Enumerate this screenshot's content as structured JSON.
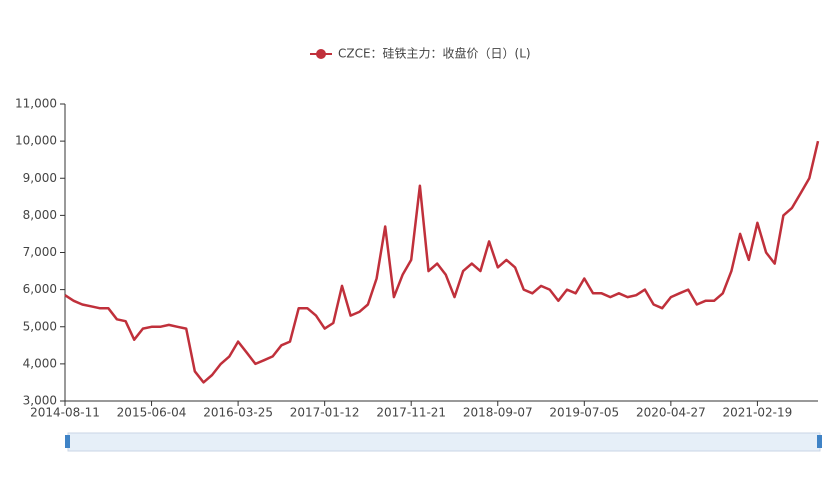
{
  "chart_data": {
    "type": "line",
    "categories": [
      "2014-08-11",
      null,
      null,
      null,
      null,
      null,
      null,
      null,
      null,
      null,
      "2015-06-04",
      null,
      null,
      null,
      null,
      null,
      null,
      null,
      null,
      null,
      "2016-03-25",
      null,
      null,
      null,
      null,
      null,
      null,
      null,
      null,
      null,
      "2017-01-12",
      null,
      null,
      null,
      null,
      null,
      null,
      null,
      null,
      null,
      "2017-11-21",
      null,
      null,
      null,
      null,
      null,
      null,
      null,
      null,
      null,
      "2018-09-07",
      null,
      null,
      null,
      null,
      null,
      null,
      null,
      null,
      null,
      "2019-07-05",
      null,
      null,
      null,
      null,
      null,
      null,
      null,
      null,
      null,
      "2020-04-27",
      null,
      null,
      null,
      null,
      null,
      null,
      null,
      null,
      null,
      "2021-02-19",
      null,
      null,
      null,
      null,
      null,
      null,
      null
    ],
    "series": [
      {
        "name": "CZCE：硅铁主力：收盘价（日）(L)",
        "color": "#c0303b",
        "values": [
          5850,
          5700,
          5600,
          5550,
          5500,
          5500,
          5200,
          5150,
          4650,
          4950,
          5000,
          5000,
          5050,
          5000,
          4950,
          3800,
          3500,
          3700,
          4000,
          4200,
          4600,
          4300,
          4000,
          4100,
          4200,
          4500,
          4600,
          5500,
          5500,
          5300,
          4950,
          5100,
          6100,
          5300,
          5400,
          5600,
          6300,
          7700,
          5800,
          6400,
          6800,
          8800,
          6500,
          6700,
          6400,
          5800,
          6500,
          6700,
          6500,
          7300,
          6600,
          6800,
          6600,
          6000,
          5900,
          6100,
          6000,
          5700,
          6000,
          5900,
          6300,
          5900,
          5900,
          5800,
          5900,
          5800,
          5850,
          6000,
          5600,
          5500,
          5800,
          5900,
          6000,
          5600,
          5700,
          5700,
          5900,
          6500,
          7500,
          6800,
          7800,
          7000,
          6700,
          8000,
          8200,
          8600,
          9000,
          10000
        ]
      }
    ],
    "ylim": [
      3000,
      11000
    ],
    "yticks": [
      {
        "value": 3000,
        "label": "3,000"
      },
      {
        "value": 4000,
        "label": "4,000"
      },
      {
        "value": 5000,
        "label": "5,000"
      },
      {
        "value": 6000,
        "label": "6,000"
      },
      {
        "value": 7000,
        "label": "7,000"
      },
      {
        "value": 8000,
        "label": "8,000"
      },
      {
        "value": 9000,
        "label": "9,000"
      },
      {
        "value": 10000,
        "label": "10,000"
      },
      {
        "value": 11000,
        "label": "11,000"
      }
    ]
  }
}
